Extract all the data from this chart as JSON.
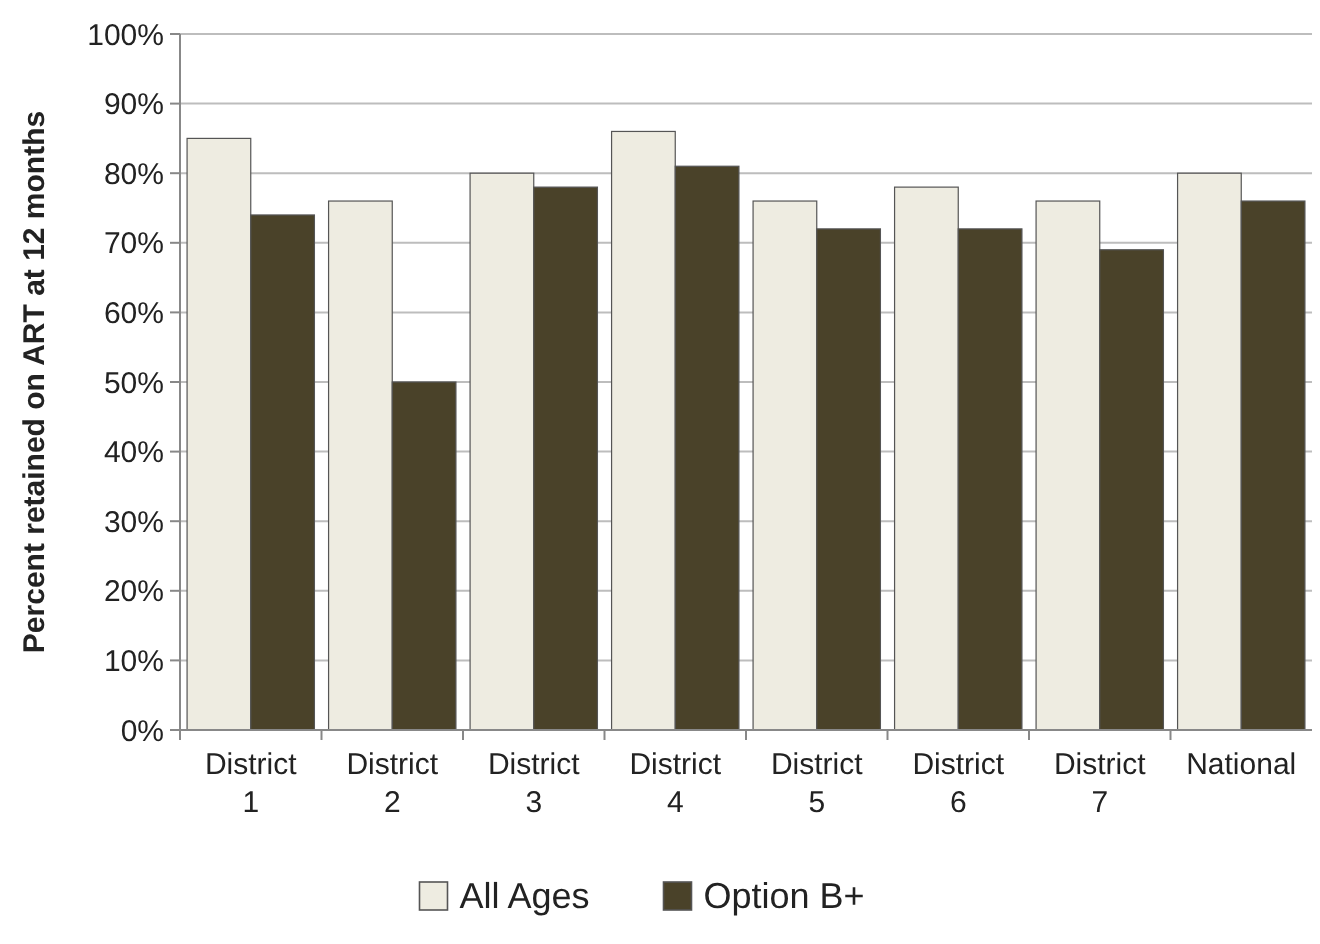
{
  "chart_data": {
    "type": "bar",
    "ylabel": "Percent retained on ART at 12 months",
    "categories": [
      "District 1",
      "District 2",
      "District 3",
      "District 4",
      "District 5",
      "District 6",
      "District 7",
      "National"
    ],
    "series": [
      {
        "name": "All Ages",
        "color": "#eeece1",
        "values": [
          85,
          76,
          80,
          86,
          76,
          78,
          76,
          80
        ]
      },
      {
        "name": "Option B+",
        "color": "#4a4229",
        "values": [
          74,
          50,
          78,
          81,
          72,
          72,
          69,
          76
        ]
      }
    ],
    "ylim": [
      0,
      100
    ],
    "yticks": [
      {
        "value": 0,
        "label": "0%"
      },
      {
        "value": 10,
        "label": "10%"
      },
      {
        "value": 20,
        "label": "20%"
      },
      {
        "value": 30,
        "label": "30%"
      },
      {
        "value": 40,
        "label": "40%"
      },
      {
        "value": 50,
        "label": "50%"
      },
      {
        "value": 60,
        "label": "60%"
      },
      {
        "value": 70,
        "label": "70%"
      },
      {
        "value": 80,
        "label": "80%"
      },
      {
        "value": 90,
        "label": "90%"
      },
      {
        "value": 100,
        "label": "100%"
      }
    ],
    "grid": "y",
    "legend": "bottom"
  }
}
